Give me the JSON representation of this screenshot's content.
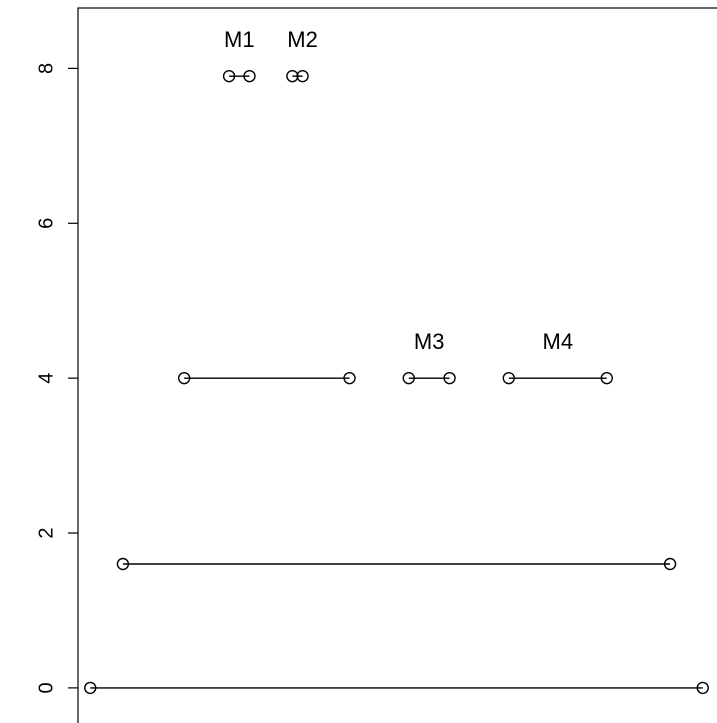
{
  "chart_data": {
    "type": "scatter",
    "title": "",
    "xlabel": "",
    "ylabel": "",
    "ylim": [
      -0.35,
      8.78
    ],
    "xlim": [
      -0.3,
      15.3
    ],
    "y_ticks": [
      "0",
      "2",
      "4",
      "6",
      "8"
    ],
    "y_tick_values": [
      0,
      2,
      4,
      6,
      8
    ],
    "grid": false,
    "legend": "none",
    "point_style": "open-circle",
    "colors": {
      "line": "#000000",
      "background": "#ffffff"
    },
    "segments": [
      {
        "x": [
          0.0,
          15.0
        ],
        "y": 0.0
      },
      {
        "x": [
          0.8,
          14.2
        ],
        "y": 1.6
      },
      {
        "x": [
          2.3,
          6.35
        ],
        "y": 4.0
      },
      {
        "x": [
          7.8,
          8.8
        ],
        "y": 4.0
      },
      {
        "x": [
          10.25,
          12.65
        ],
        "y": 4.0
      },
      {
        "x": [
          3.4,
          3.9
        ],
        "y": 7.9
      },
      {
        "x": [
          4.95,
          5.2
        ],
        "y": 7.9
      }
    ],
    "annotations": [
      {
        "text": "M1",
        "x": 3.65,
        "y": 8.35
      },
      {
        "text": "M2",
        "x": 5.2,
        "y": 8.35
      },
      {
        "text": "M3",
        "x": 8.3,
        "y": 4.45
      },
      {
        "text": "M4",
        "x": 11.45,
        "y": 4.45
      }
    ]
  }
}
